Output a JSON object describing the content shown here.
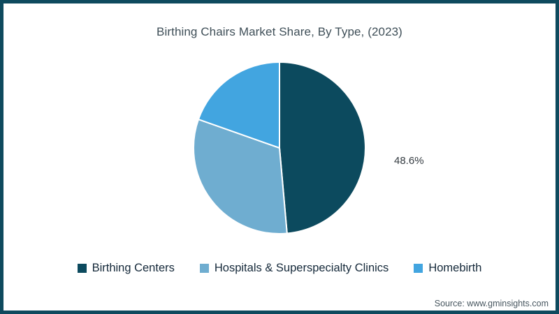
{
  "window": {
    "background": "#ffffff",
    "border_color": "#0e4a5e"
  },
  "chart_data": {
    "type": "pie",
    "title": "Birthing Chairs Market Share, By Type, (2023)",
    "categories": [
      "Birthing Centers",
      "Hospitals & Superspecialty Clinics",
      "Homebirth"
    ],
    "values": [
      48.6,
      31.8,
      19.6
    ],
    "unit": "%",
    "colors": [
      "#0c4a5e",
      "#6fadd0",
      "#42a5e0"
    ],
    "start_angle_deg": 0,
    "direction": "clockwise",
    "slice_separator_color": "#ffffff",
    "legend_position": "bottom",
    "data_label": {
      "text": "48.6%",
      "category": "Birthing Centers",
      "position": "right-of-pie"
    }
  },
  "legend": {
    "items": [
      {
        "label": "Birthing Centers",
        "color": "#0c4a5e"
      },
      {
        "label": "Hospitals & Superspecialty Clinics",
        "color": "#6fadd0"
      },
      {
        "label": "Homebirth",
        "color": "#42a5e0"
      }
    ]
  },
  "footer": {
    "source": "Source: www.gminsights.com"
  }
}
